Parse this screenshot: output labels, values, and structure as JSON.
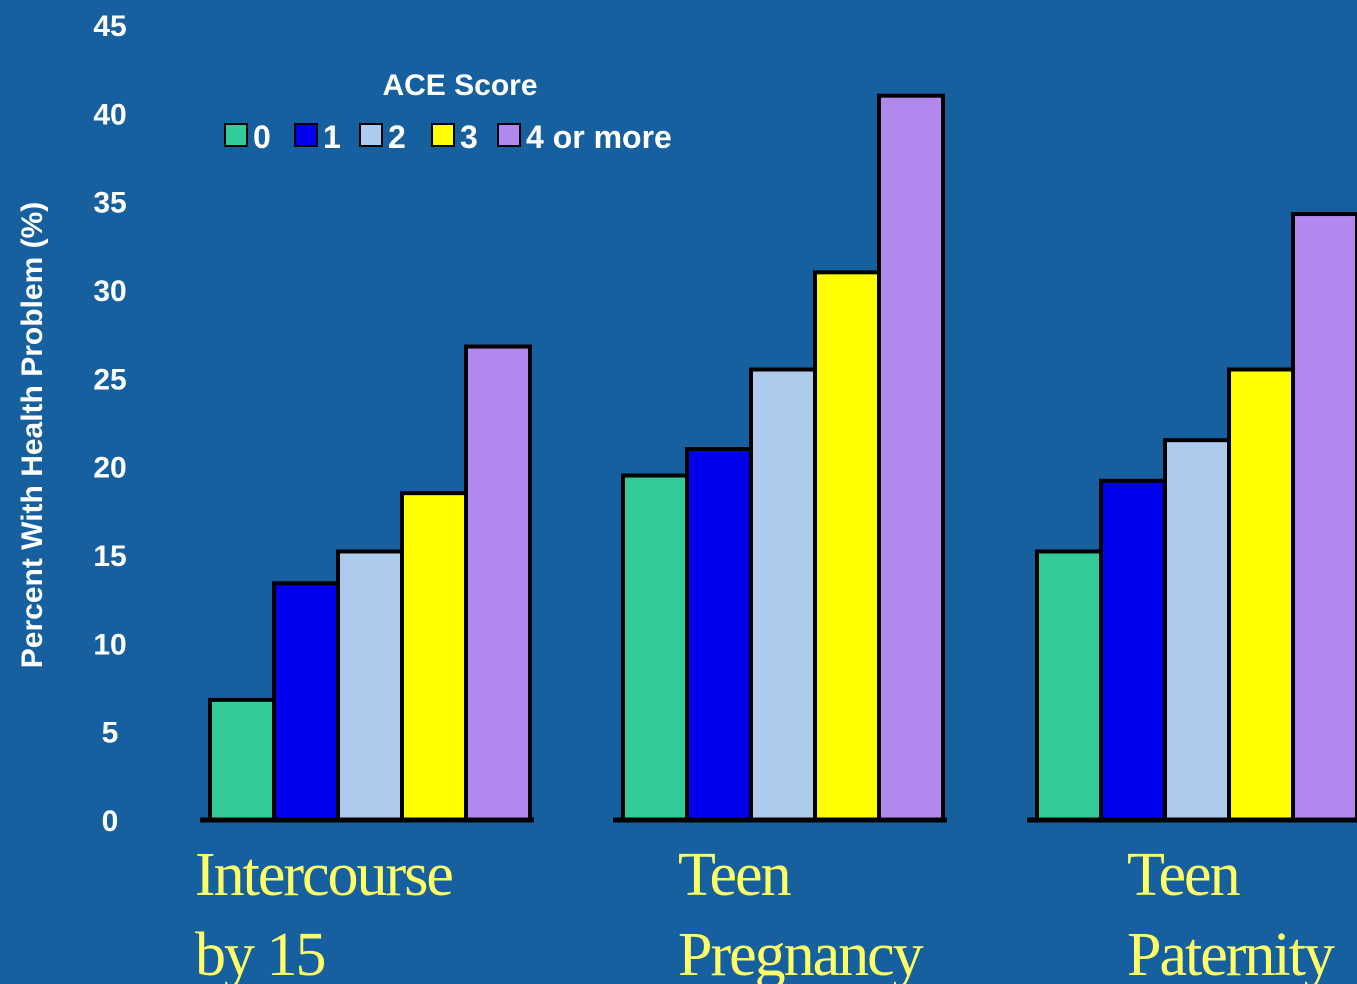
{
  "chart_data": {
    "type": "bar",
    "ylabel": "Percent With Health Problem  (%)",
    "ylim": [
      0,
      45
    ],
    "yticks": [
      "0",
      "5",
      "10",
      "15",
      "20",
      "25",
      "30",
      "35",
      "40",
      "45"
    ],
    "legend": {
      "title": "ACE Score",
      "placement": "top-left"
    },
    "categories": [
      {
        "lines": [
          "Intercourse",
          "by 15"
        ]
      },
      {
        "lines": [
          "Teen",
          "Pregnancy"
        ]
      },
      {
        "lines": [
          "Teen",
          "Paternity"
        ]
      }
    ],
    "series": [
      {
        "name": "0",
        "color": "#33CC99",
        "values": [
          6.8,
          19.5,
          15.2
        ]
      },
      {
        "name": "1",
        "color": "#0000EE",
        "values": [
          13.4,
          21.0,
          19.2
        ]
      },
      {
        "name": "2",
        "color": "#AECBEE",
        "values": [
          15.2,
          25.5,
          21.5
        ]
      },
      {
        "name": "3",
        "color": "#FFFF00",
        "values": [
          18.5,
          31.0,
          25.5
        ]
      },
      {
        "name": "4 or more",
        "color": "#B088EE",
        "values": [
          26.8,
          41.0,
          34.3
        ]
      }
    ],
    "grid": false,
    "text_color": "#FFFFFF",
    "category_label_color": "#FFFF66",
    "background": "#1660A0"
  }
}
